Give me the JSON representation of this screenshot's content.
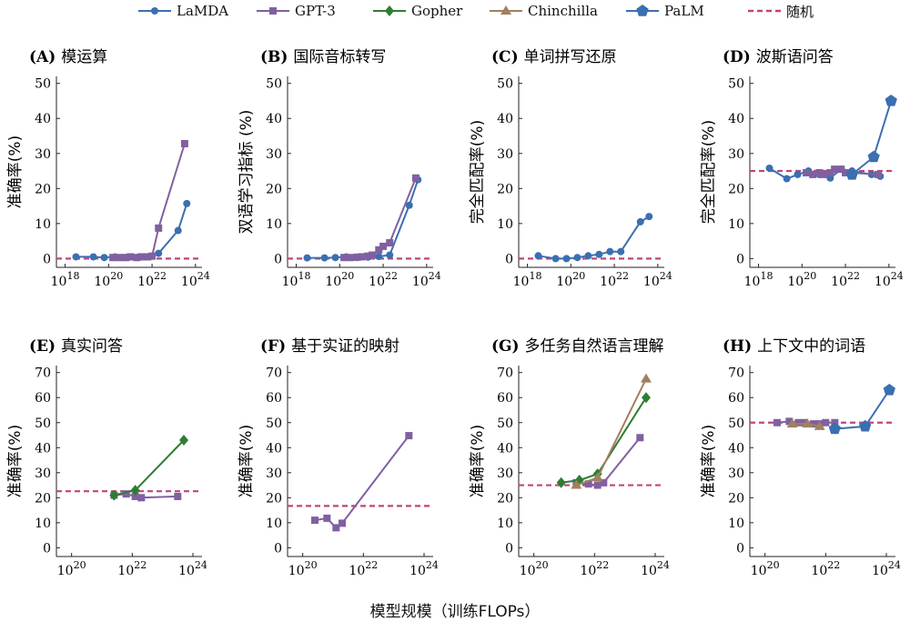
{
  "legend": {
    "items": [
      {
        "name": "LaMDA",
        "color": "#3a6fb0",
        "marker": "circle"
      },
      {
        "name": "GPT-3",
        "color": "#8060a0",
        "marker": "square"
      },
      {
        "name": "Gopher",
        "color": "#2e7d32",
        "marker": "diamond"
      },
      {
        "name": "Chinchilla",
        "color": "#a08060",
        "marker": "triangle"
      },
      {
        "name": "PaLM",
        "color": "#3a6fb0",
        "marker": "pentagon"
      },
      {
        "name": "随机",
        "color": "#c0447a",
        "marker": "dashed"
      }
    ]
  },
  "global_xlabel": "模型规模（训练FLOPs）",
  "chart_data": [
    {
      "type": "line",
      "label": "(A)",
      "title": "模运算",
      "ylabel": "准确率(%)",
      "ylim": [
        0,
        50
      ],
      "yticks": [
        0,
        10,
        20,
        30,
        40,
        50
      ],
      "xlim": [
        17.6,
        24.3
      ],
      "xticks": [
        18,
        20,
        22,
        24
      ],
      "random": 0,
      "series": [
        {
          "name": "LaMDA",
          "x": [
            18.5,
            19.3,
            19.8,
            20.3,
            20.8,
            21.3,
            21.8,
            22.3,
            23.2,
            23.6
          ],
          "y": [
            0.5,
            0.5,
            0.3,
            0.5,
            0.3,
            0.3,
            0.5,
            1.5,
            8.0,
            15.7
          ]
        },
        {
          "name": "GPT-3",
          "x": [
            20.2,
            20.5,
            20.8,
            21.0,
            21.3,
            21.5,
            21.8,
            22.0,
            22.3,
            23.5
          ],
          "y": [
            0.3,
            0.3,
            0.3,
            0.5,
            0.3,
            0.5,
            0.5,
            0.7,
            8.7,
            32.8
          ]
        }
      ]
    },
    {
      "type": "line",
      "label": "(B)",
      "title": "国际音标转写",
      "ylabel": "双语学习指标 (%)",
      "ylim": [
        0,
        50
      ],
      "yticks": [
        0,
        10,
        20,
        30,
        40,
        50
      ],
      "xlim": [
        17.6,
        24.3
      ],
      "xticks": [
        18,
        20,
        22,
        24
      ],
      "random": 0,
      "series": [
        {
          "name": "LaMDA",
          "x": [
            18.5,
            19.3,
            19.8,
            20.3,
            20.8,
            21.3,
            21.8,
            22.3,
            23.2,
            23.6
          ],
          "y": [
            0.2,
            0.2,
            0.3,
            0.5,
            0.3,
            0.4,
            0.6,
            1.0,
            15.2,
            22.5
          ]
        },
        {
          "name": "GPT-3",
          "x": [
            20.2,
            20.5,
            20.8,
            21.0,
            21.3,
            21.5,
            21.8,
            22.0,
            22.3,
            23.5
          ],
          "y": [
            0.3,
            0.3,
            0.4,
            0.5,
            0.7,
            1.0,
            2.5,
            3.5,
            4.5,
            23.0
          ]
        }
      ]
    },
    {
      "type": "line",
      "label": "(C)",
      "title": "单词拼写还原",
      "ylabel": "完全匹配率(%)",
      "ylim": [
        0,
        50
      ],
      "yticks": [
        0,
        10,
        20,
        30,
        40,
        50
      ],
      "xlim": [
        17.6,
        24.3
      ],
      "xticks": [
        18,
        20,
        22,
        24
      ],
      "random": 0,
      "series": [
        {
          "name": "LaMDA",
          "x": [
            18.5,
            19.3,
            19.8,
            20.3,
            20.8,
            21.3,
            21.8,
            22.3,
            23.2,
            23.6
          ],
          "y": [
            0.8,
            0.0,
            0.0,
            0.3,
            0.8,
            1.2,
            2.0,
            2.0,
            10.5,
            12.0
          ]
        }
      ]
    },
    {
      "type": "line",
      "label": "(D)",
      "title": "波斯语问答",
      "ylabel": "完全匹配率(%)",
      "ylim": [
        0,
        50
      ],
      "yticks": [
        0,
        10,
        20,
        30,
        40,
        50
      ],
      "xlim": [
        17.6,
        24.3
      ],
      "xticks": [
        18,
        20,
        22,
        24
      ],
      "random": 25,
      "series": [
        {
          "name": "LaMDA",
          "x": [
            18.5,
            19.3,
            19.8,
            20.3,
            20.8,
            21.3,
            21.8,
            22.3,
            23.2,
            23.6
          ],
          "y": [
            25.8,
            22.8,
            24.0,
            25.0,
            24.0,
            23.0,
            25.5,
            25.0,
            24.0,
            23.5
          ]
        },
        {
          "name": "GPT-3",
          "x": [
            20.2,
            20.5,
            20.8,
            21.0,
            21.3,
            21.5,
            21.8,
            22.0,
            22.3,
            23.5
          ],
          "y": [
            24.5,
            24.0,
            24.5,
            24.0,
            24.5,
            25.5,
            25.5,
            24.5,
            24.5,
            24.0
          ]
        },
        {
          "name": "PaLM",
          "x": [
            22.3,
            23.3,
            24.1
          ],
          "y": [
            24.0,
            29.0,
            45.0
          ]
        }
      ]
    },
    {
      "type": "line",
      "label": "(E)",
      "title": "真实问答",
      "ylabel": "准确率(%)",
      "ylim": [
        0,
        70
      ],
      "yticks": [
        0,
        10,
        20,
        30,
        40,
        50,
        60,
        70
      ],
      "xlim": [
        19.5,
        24.3
      ],
      "xticks": [
        20,
        22,
        24
      ],
      "random": 22.6,
      "series": [
        {
          "name": "GPT-3",
          "x": [
            21.4,
            21.8,
            22.1,
            22.3,
            23.5
          ],
          "y": [
            21.0,
            21.5,
            20.5,
            20.0,
            20.5
          ]
        },
        {
          "name": "Gopher",
          "x": [
            21.4,
            22.1,
            23.7
          ],
          "y": [
            21.0,
            23.0,
            43.0
          ]
        }
      ]
    },
    {
      "type": "line",
      "label": "(F)",
      "title": "基于实证的映射",
      "ylabel": "准确率(%)",
      "ylim": [
        0,
        70
      ],
      "yticks": [
        0,
        10,
        20,
        30,
        40,
        50,
        60,
        70
      ],
      "xlim": [
        19.5,
        24.3
      ],
      "xticks": [
        20,
        22,
        24
      ],
      "random": 16.7,
      "series": [
        {
          "name": "GPT-3",
          "x": [
            20.4,
            20.8,
            21.1,
            21.3,
            23.5
          ],
          "y": [
            11.0,
            11.8,
            8.0,
            9.8,
            44.8
          ]
        }
      ]
    },
    {
      "type": "line",
      "label": "(G)",
      "title": "多任务自然语言理解",
      "ylabel": "准确率(%)",
      "ylim": [
        0,
        70
      ],
      "yticks": [
        0,
        10,
        20,
        30,
        40,
        50,
        60,
        70
      ],
      "xlim": [
        19.5,
        24.3
      ],
      "xticks": [
        20,
        22,
        24
      ],
      "random": 25,
      "series": [
        {
          "name": "GPT-3",
          "x": [
            21.4,
            21.8,
            22.1,
            22.3,
            23.5
          ],
          "y": [
            26.0,
            25.5,
            25.0,
            26.0,
            44.0
          ]
        },
        {
          "name": "Gopher",
          "x": [
            20.9,
            21.5,
            22.1,
            23.7
          ],
          "y": [
            26.0,
            27.0,
            29.5,
            60.0
          ]
        },
        {
          "name": "Chinchilla",
          "x": [
            21.4,
            22.1,
            23.7
          ],
          "y": [
            25.0,
            28.0,
            67.5
          ]
        }
      ]
    },
    {
      "type": "line",
      "label": "(H)",
      "title": "上下文中的词语",
      "ylabel": "准确率(%)",
      "ylim": [
        0,
        70
      ],
      "yticks": [
        0,
        10,
        20,
        30,
        40,
        50,
        60,
        70
      ],
      "xlim": [
        19.5,
        24.3
      ],
      "xticks": [
        20,
        22,
        24
      ],
      "random": 50,
      "series": [
        {
          "name": "GPT-3",
          "x": [
            20.4,
            20.8,
            21.1,
            21.3,
            21.6,
            21.8,
            22.0,
            22.3
          ],
          "y": [
            50.0,
            50.5,
            50.0,
            50.0,
            49.5,
            49.5,
            50.0,
            50.0
          ]
        },
        {
          "name": "Chinchilla",
          "x": [
            20.9,
            21.4,
            21.8
          ],
          "y": [
            49.5,
            49.5,
            48.5
          ]
        },
        {
          "name": "PaLM",
          "x": [
            22.3,
            23.3,
            24.1
          ],
          "y": [
            47.5,
            48.5,
            63.0
          ]
        }
      ]
    }
  ]
}
